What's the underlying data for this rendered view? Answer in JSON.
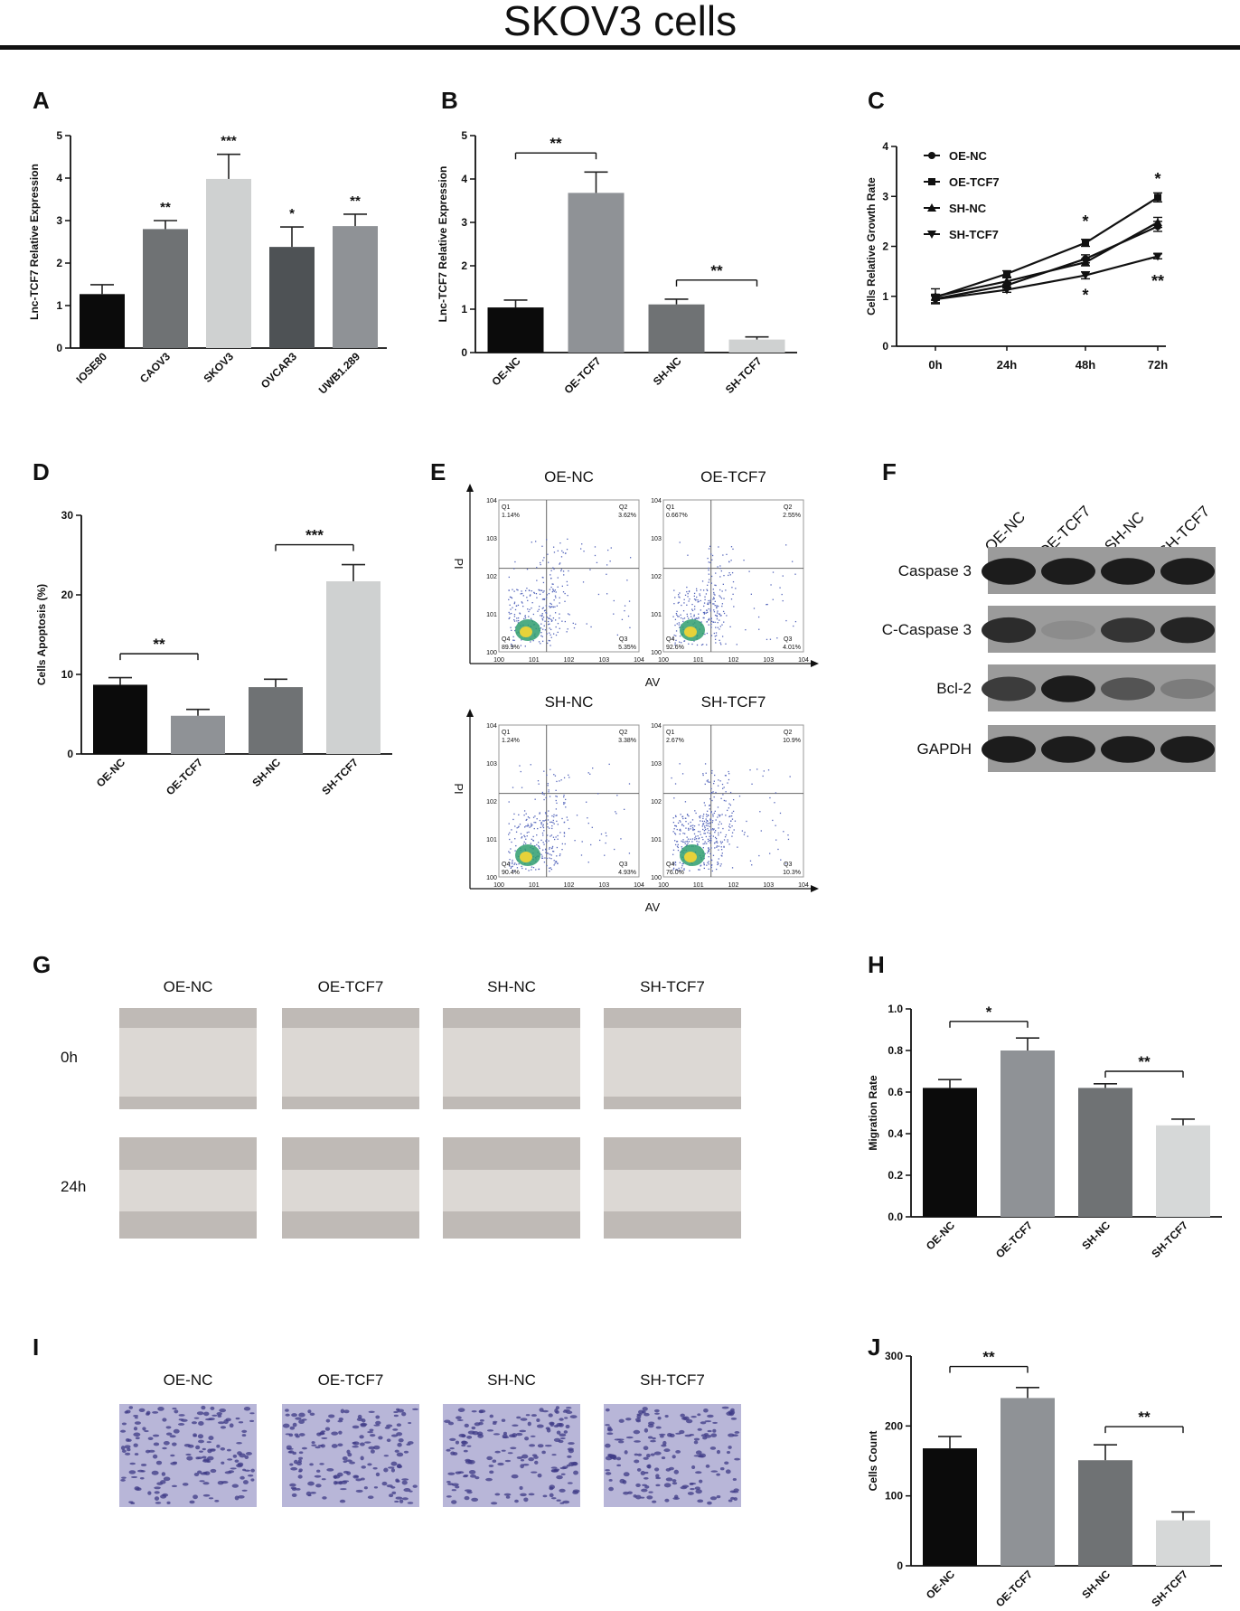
{
  "page": {
    "title": "SKOV3 cells"
  },
  "panels": [
    "A",
    "B",
    "C",
    "D",
    "E",
    "F",
    "G",
    "H",
    "I",
    "J"
  ],
  "colors": {
    "black": "#0b0b0b",
    "dark_gray": "#6f7274",
    "gray": "#8f9296",
    "light_gray": "#cfd1d1",
    "charcoal": "#4e5255",
    "slate": "#7f8386",
    "pale": "#d6d8d8"
  },
  "chart_data": [
    {
      "panel": "A",
      "type": "bar",
      "categories": [
        "IOSE80",
        "CAOV3",
        "SKOV3",
        "OVCAR3",
        "UWB1.289"
      ],
      "values": [
        1.27,
        2.8,
        3.98,
        2.38,
        2.87
      ],
      "errors": [
        0.22,
        0.2,
        0.58,
        0.47,
        0.28
      ],
      "stars": [
        "",
        "**",
        "***",
        "*",
        "**"
      ],
      "colors": [
        "#0b0b0b",
        "#6f7274",
        "#cfd1d1",
        "#4e5255",
        "#8f9296"
      ],
      "ylabel": "Lnc-TCF7 Relative Expression",
      "ylim": [
        0,
        5
      ],
      "yticks": [
        0,
        1,
        2,
        3,
        4,
        5
      ]
    },
    {
      "panel": "B",
      "type": "bar",
      "categories": [
        "OE-NC",
        "OE-TCF7",
        "SH-NC",
        "SH-TCF7"
      ],
      "values": [
        1.04,
        3.68,
        1.11,
        0.3
      ],
      "errors": [
        0.17,
        0.48,
        0.12,
        0.06
      ],
      "colors": [
        "#0b0b0b",
        "#8f9296",
        "#6f7274",
        "#cfd1d1"
      ],
      "brackets": [
        {
          "from": 0,
          "to": 1,
          "label": "**",
          "y": 4.6
        },
        {
          "from": 2,
          "to": 3,
          "label": "**",
          "y": 1.67
        }
      ],
      "ylabel": "Lnc-TCF7 Relative Expression",
      "ylim": [
        0,
        5
      ],
      "yticks": [
        0,
        1,
        2,
        3,
        4,
        5
      ]
    },
    {
      "panel": "C",
      "type": "line",
      "x": [
        "0h",
        "24h",
        "48h",
        "72h"
      ],
      "series": [
        {
          "name": "OE-NC",
          "values": [
            0.95,
            1.22,
            1.75,
            2.4
          ],
          "errors": [
            0.08,
            0.06,
            0.08,
            0.1
          ]
        },
        {
          "name": "OE-TCF7",
          "values": [
            0.98,
            1.45,
            2.07,
            2.98
          ],
          "errors": [
            0.06,
            0.06,
            0.07,
            0.09
          ]
        },
        {
          "name": "SH-NC",
          "values": [
            1.0,
            1.3,
            1.68,
            2.48
          ],
          "errors": [
            0.15,
            0.07,
            0.07,
            0.1
          ]
        },
        {
          "name": "SH-TCF7",
          "values": [
            0.94,
            1.13,
            1.42,
            1.8
          ],
          "errors": [
            0.07,
            0.05,
            0.07,
            0.05
          ]
        }
      ],
      "annotations": [
        {
          "x": "48h",
          "value": 2.5,
          "label": "*"
        },
        {
          "x": "48h",
          "value": 1.02,
          "label": "*"
        },
        {
          "x": "72h",
          "value": 3.35,
          "label": "*"
        },
        {
          "x": "72h",
          "value": 1.3,
          "label": "**"
        }
      ],
      "ylabel": "Cells Relative Growth Rate",
      "ylim": [
        0,
        4
      ],
      "yticks": [
        0,
        1,
        2,
        3,
        4
      ]
    },
    {
      "panel": "D",
      "type": "bar",
      "categories": [
        "OE-NC",
        "OE-TCF7",
        "SH-NC",
        "SH-TCF7"
      ],
      "values": [
        8.7,
        4.8,
        8.4,
        21.7
      ],
      "errors": [
        0.9,
        0.8,
        1.0,
        2.1
      ],
      "colors": [
        "#0b0b0b",
        "#8f9296",
        "#6f7274",
        "#cfd1d1"
      ],
      "brackets": [
        {
          "from": 0,
          "to": 1,
          "label": "**",
          "y": 12.6
        },
        {
          "from": 2,
          "to": 3,
          "label": "***",
          "y": 26.3
        }
      ],
      "ylabel": "Cells Apoptosis (%)",
      "ylim": [
        0,
        30
      ],
      "yticks": [
        0,
        10,
        20,
        30
      ]
    },
    {
      "panel": "H",
      "type": "bar",
      "categories": [
        "OE-NC",
        "OE-TCF7",
        "SH-NC",
        "SH-TCF7"
      ],
      "values": [
        0.62,
        0.8,
        0.62,
        0.44
      ],
      "errors": [
        0.04,
        0.06,
        0.02,
        0.03
      ],
      "colors": [
        "#0b0b0b",
        "#8f9296",
        "#6f7274",
        "#d6d8d8"
      ],
      "brackets": [
        {
          "from": 0,
          "to": 1,
          "label": "*",
          "y": 0.94
        },
        {
          "from": 2,
          "to": 3,
          "label": "**",
          "y": 0.7
        }
      ],
      "ylabel": "Migration Rate",
      "ylim": [
        0,
        1.0
      ],
      "yticks": [
        0.0,
        0.2,
        0.4,
        0.6,
        0.8,
        1.0
      ]
    },
    {
      "panel": "J",
      "type": "bar",
      "categories": [
        "OE-NC",
        "OE-TCF7",
        "SH-NC",
        "SH-TCF7"
      ],
      "values": [
        168,
        240,
        151,
        65
      ],
      "errors": [
        17,
        15,
        22,
        12
      ],
      "colors": [
        "#0b0b0b",
        "#8f9296",
        "#6f7274",
        "#d6d8d8"
      ],
      "brackets": [
        {
          "from": 0,
          "to": 1,
          "label": "**",
          "y": 285
        },
        {
          "from": 2,
          "to": 3,
          "label": "**",
          "y": 199
        }
      ],
      "ylabel": "Cells Count",
      "ylim": [
        0,
        300
      ],
      "yticks": [
        0,
        100,
        200,
        300
      ]
    }
  ],
  "flow": {
    "xlabel": "AV",
    "ylabel": "PI",
    "panels": [
      {
        "title": "OE-NC",
        "q1": "1.14%",
        "q2": "3.62%",
        "q3": "5.35%",
        "q4": "89.9%"
      },
      {
        "title": "OE-TCF7",
        "q1": "0.667%",
        "q2": "2.55%",
        "q3": "4.01%",
        "q4": "92.6%"
      },
      {
        "title": "SH-NC",
        "q1": "1.24%",
        "q2": "3.38%",
        "q3": "4.93%",
        "q4": "90.4%"
      },
      {
        "title": "SH-TCF7",
        "q1": "2.67%",
        "q2": "10.9%",
        "q3": "10.3%",
        "q4": "76.0%"
      }
    ]
  },
  "blot": {
    "lanes": [
      "OE-NC",
      "OE-TCF7",
      "SH-NC",
      "SH-TCF7"
    ],
    "rows": [
      {
        "label": "Caspase 3",
        "intensity": [
          0.95,
          0.95,
          0.95,
          0.95
        ]
      },
      {
        "label": "C-Caspase 3",
        "intensity": [
          0.85,
          0.25,
          0.8,
          0.9
        ]
      },
      {
        "label": "Bcl-2",
        "intensity": [
          0.75,
          0.95,
          0.6,
          0.35
        ]
      },
      {
        "label": "GAPDH",
        "intensity": [
          0.95,
          0.95,
          0.95,
          0.95
        ]
      }
    ]
  },
  "wound": {
    "columns": [
      "OE-NC",
      "OE-TCF7",
      "SH-NC",
      "SH-TCF7"
    ],
    "rows": [
      "0h",
      "24h"
    ]
  },
  "transwell": {
    "columns": [
      "OE-NC",
      "OE-TCF7",
      "SH-NC",
      "SH-TCF7"
    ]
  }
}
